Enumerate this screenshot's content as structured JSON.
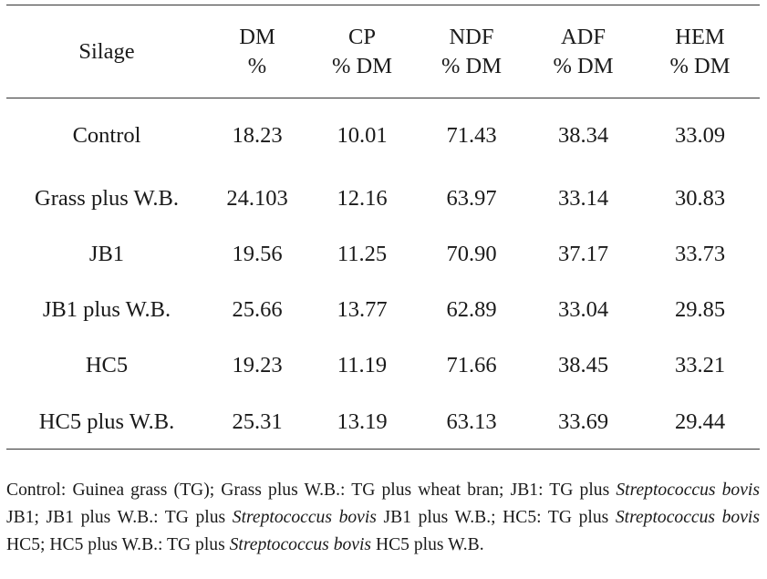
{
  "table": {
    "headers": [
      {
        "key": "silage",
        "line1": "Silage",
        "line2": ""
      },
      {
        "key": "dm",
        "line1": "DM",
        "line2": "%"
      },
      {
        "key": "cp",
        "line1": "CP",
        "line2": "% DM"
      },
      {
        "key": "ndf",
        "line1": "NDF",
        "line2": "% DM"
      },
      {
        "key": "adf",
        "line1": "ADF",
        "line2": "% DM"
      },
      {
        "key": "hem",
        "line1": "HEM",
        "line2": "% DM"
      }
    ],
    "rows": [
      {
        "silage": "Control",
        "dm": "18.23",
        "cp": "10.01",
        "ndf": "71.43",
        "adf": "38.34",
        "hem": "33.09"
      },
      {
        "silage": "Grass plus W.B.",
        "dm": "24.103",
        "cp": "12.16",
        "ndf": "63.97",
        "adf": "33.14",
        "hem": "30.83"
      },
      {
        "silage": "JB1",
        "dm": "19.56",
        "cp": "11.25",
        "ndf": "70.90",
        "adf": "37.17",
        "hem": "33.73"
      },
      {
        "silage": "JB1 plus W.B.",
        "dm": "25.66",
        "cp": "13.77",
        "ndf": "62.89",
        "adf": "33.04",
        "hem": "29.85"
      },
      {
        "silage": "HC5",
        "dm": "19.23",
        "cp": "11.19",
        "ndf": "71.66",
        "adf": "38.45",
        "hem": "33.21"
      },
      {
        "silage": "HC5 plus W.B.",
        "dm": "25.31",
        "cp": "13.19",
        "ndf": "63.13",
        "adf": "33.69",
        "hem": "29.44"
      }
    ]
  },
  "footnote": {
    "parts": [
      "Control: Guinea grass (TG); Grass plus W.B.: TG plus wheat bran; JB1: TG plus ",
      "Streptococcus bovis",
      " JB1; JB1 plus W.B.: TG plus ",
      "Streptococcus bovis",
      " JB1 plus W.B.; HC5: TG plus ",
      "Streptococcus bovis",
      " HC5; HC5 plus W.B.: TG plus ",
      "Streptococcus bovis",
      " HC5 plus W.B."
    ]
  }
}
